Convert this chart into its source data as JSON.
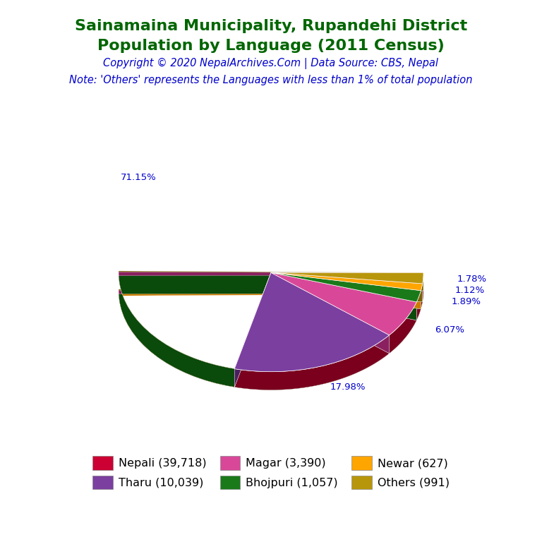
{
  "title_line1": "Sainamaina Municipality, Rupandehi District",
  "title_line2": "Population by Language (2011 Census)",
  "copyright": "Copyright © 2020 NepalArchives.Com | Data Source: CBS, Nepal",
  "note": "Note: 'Others' represents the Languages with less than 1% of total population",
  "labels": [
    "Nepali",
    "Tharu",
    "Magar",
    "Bhojpuri",
    "Newar",
    "Others"
  ],
  "values": [
    39718,
    10039,
    3390,
    1057,
    627,
    991
  ],
  "percentages": [
    71.15,
    17.98,
    6.07,
    1.89,
    1.12,
    1.78
  ],
  "colors": [
    "#cc0033",
    "#7b3fa0",
    "#d94898",
    "#1a7a1a",
    "#ffa500",
    "#b8960c"
  ],
  "dark_colors": [
    "#7a001e",
    "#4a1f60",
    "#8a2060",
    "#0a4a0a",
    "#cc7a00",
    "#7a6008"
  ],
  "legend_labels": [
    "Nepali (39,718)",
    "Tharu (10,039)",
    "Magar (3,390)",
    "Bhojpuri (1,057)",
    "Newar (627)",
    "Others (991)"
  ],
  "legend_order": [
    0,
    1,
    2,
    3,
    4,
    5
  ],
  "title_color": "#006600",
  "copyright_color": "#0000cc",
  "note_color": "#0000cc",
  "pct_color": "#0000cc",
  "background_color": "#ffffff",
  "depth": 0.12,
  "yscale": 0.65
}
